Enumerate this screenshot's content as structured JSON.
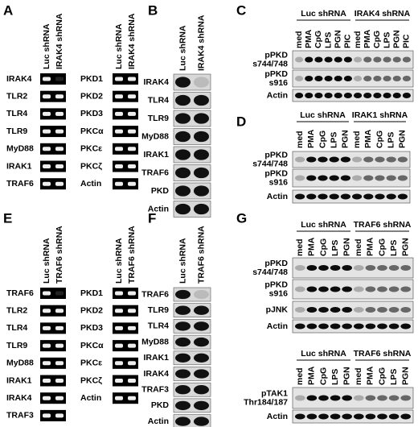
{
  "panels": [
    {
      "letter": "A",
      "groups": [
        {
          "lanes": [
            "Luc shRNA",
            "IRAK4 shRNA"
          ],
          "rows": [
            "IRAK4",
            "TLR2",
            "TLR4",
            "TLR9",
            "MyD88",
            "IRAK1",
            "TRAF6"
          ]
        },
        {
          "lanes": [
            "Luc shRNA",
            "IRAK4 shRNA"
          ],
          "rows": [
            "PKD1",
            "PKD2",
            "PKD3",
            "PKCα",
            "PKCε",
            "PKCζ",
            "Actin"
          ]
        }
      ]
    },
    {
      "letter": "B",
      "groups": [
        {
          "lanes": [
            "Luc shRNA",
            "IRAK4 shRNA"
          ],
          "rows": [
            "IRAK4",
            "TLR4",
            "TLR9",
            "MyD88",
            "IRAK1",
            "TRAF6",
            "PKD",
            "Actin"
          ]
        }
      ]
    },
    {
      "letter": "C",
      "blocks": [
        {
          "groups": [
            "Luc shRNA",
            "IRAK4 shRNA"
          ],
          "lanes": [
            "med",
            "PMA",
            "CpG",
            "LPS",
            "PGN",
            "PIC",
            "med",
            "PMA",
            "CpG",
            "LPS",
            "PGN",
            "PIC"
          ],
          "rows": [
            [
              "pPKD",
              "s744/748"
            ],
            [
              "pPKD",
              "s916"
            ],
            [
              "Actin"
            ]
          ]
        }
      ]
    },
    {
      "letter": "D",
      "blocks": [
        {
          "groups": [
            "Luc shRNA",
            "IRAK1 shRNA"
          ],
          "lanes": [
            "med",
            "PMA",
            "CpG",
            "LPS",
            "PGN",
            "med",
            "PMA",
            "CpG",
            "LPS",
            "PGN"
          ],
          "rows": [
            [
              "pPKD",
              "s744/748"
            ],
            [
              "pPKD",
              "s916"
            ],
            [
              "Actin"
            ]
          ]
        }
      ]
    },
    {
      "letter": "E",
      "groups": [
        {
          "lanes": [
            "Luc shRNA",
            "TRAF6 shRNA"
          ],
          "rows": [
            "TRAF6",
            "TLR2",
            "TLR4",
            "TLR9",
            "MyD88",
            "IRAK1",
            "IRAK4",
            "TRAF3"
          ]
        },
        {
          "lanes": [
            "Luc shRNA",
            "TRAF6 shRNA"
          ],
          "rows": [
            "PKD1",
            "PKD2",
            "PKD3",
            "PKCα",
            "PKCε",
            "PKCζ",
            "Actin"
          ]
        }
      ]
    },
    {
      "letter": "F",
      "groups": [
        {
          "lanes": [
            "Luc shRNA",
            "TRAF6 shRNA"
          ],
          "rows": [
            "TRAF6",
            "TLR9",
            "TLR4",
            "MyD88",
            "IRAK1",
            "IRAK4",
            "TRAF3",
            "PKD",
            "Actin"
          ]
        }
      ]
    },
    {
      "letter": "G",
      "blocks": [
        {
          "groups": [
            "Luc shRNA",
            "TRAF6 shRNA"
          ],
          "lanes": [
            "med",
            "PMA",
            "CpG",
            "LPS",
            "PGN",
            "med",
            "PMA",
            "CpG",
            "LPS",
            "PGN"
          ],
          "rows": [
            [
              "pPKD",
              "s744/748"
            ],
            [
              "pPKD",
              "s916"
            ],
            [
              "pJNK"
            ],
            [
              "Actin"
            ]
          ]
        },
        {
          "groups": [
            "Luc shRNA",
            "TRAF6 shRNA"
          ],
          "lanes": [
            "med",
            "PMA",
            "CpG",
            "LPS",
            "PGN",
            "med",
            "PMA",
            "CpG",
            "LPS",
            "PGN"
          ],
          "rows": [
            [
              "pTAK1",
              "Thr184/187"
            ],
            [
              "Actin"
            ]
          ]
        }
      ]
    }
  ]
}
